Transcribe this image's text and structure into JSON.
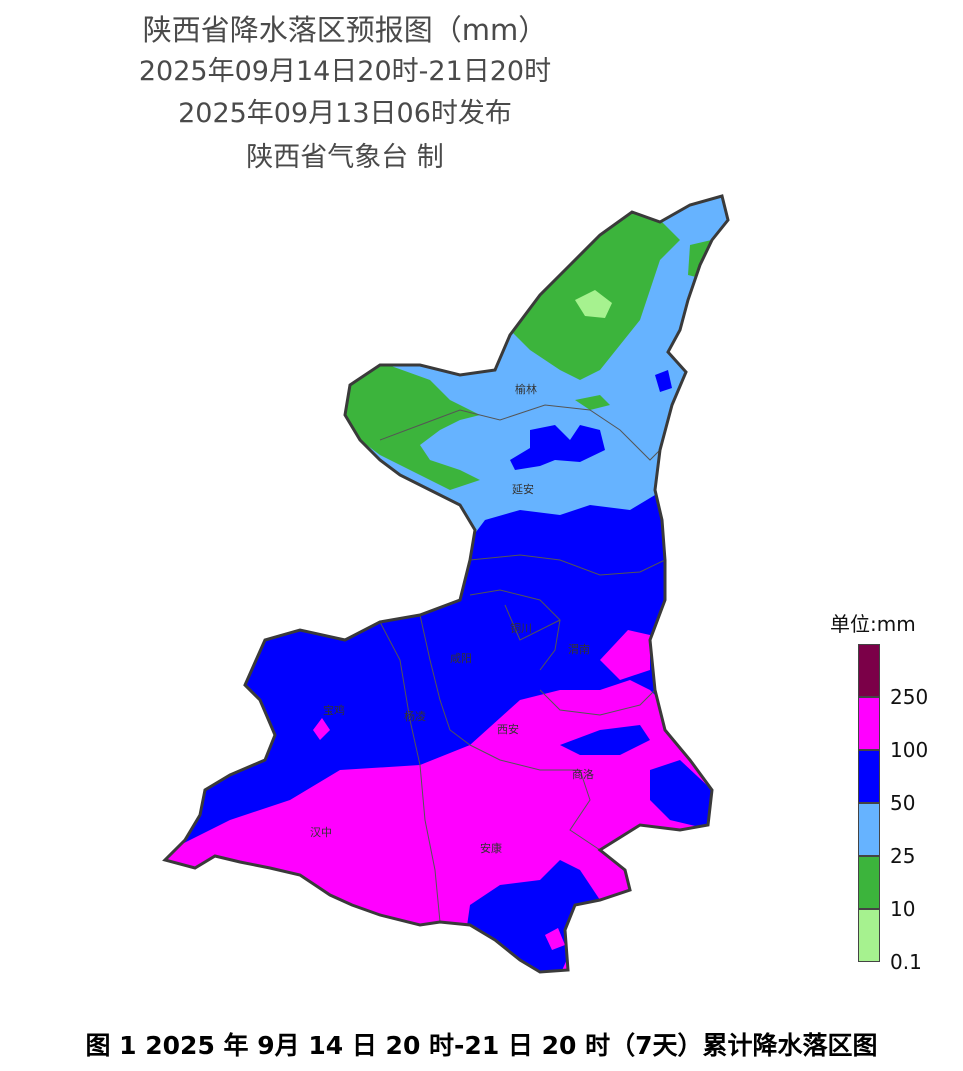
{
  "header": {
    "title": "陕西省降水落区预报图（mm）",
    "period": "2025年09月14日20时-21日20时",
    "issued": "2025年09月13日06时发布",
    "publisher": "陕西省气象台 制"
  },
  "legend": {
    "unit": "单位:mm",
    "classes": [
      {
        "label": "",
        "color": "#7b0048"
      },
      {
        "label": "250",
        "color": "#ff00ff"
      },
      {
        "label": "100",
        "color": "#0000ff"
      },
      {
        "label": "50",
        "color": "#66b3ff"
      },
      {
        "label": "25",
        "color": "#3cb43c"
      },
      {
        "label": "10",
        "color": "#a6f28f"
      },
      {
        "label": "0.1",
        "color": ""
      }
    ]
  },
  "cities": {
    "yulin": "榆林",
    "yanan": "延安",
    "tongchuan": "铜川",
    "xianyang": "咸阳",
    "weinan": "渭南",
    "baoji": "宝鸡",
    "yangling": "杨凌",
    "xian": "西安",
    "shangluo": "商洛",
    "hanzhong": "汉中",
    "ankang": "安康"
  },
  "colors": {
    "band_10_25": "#3cb43c",
    "band_01_10": "#a6f28f",
    "band_25_50": "#66b3ff",
    "band_50_100": "#0000ff",
    "band_100_250": "#ff00ff",
    "outline": "#3a3a3a"
  },
  "caption": "图 1  2025 年 9月 14 日 20 时-21 日 20 时（7天）累计降水落区图"
}
